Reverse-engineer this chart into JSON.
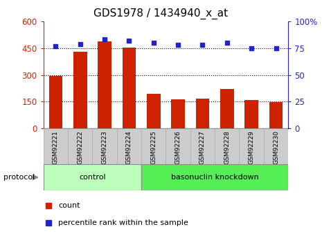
{
  "title": "GDS1978 / 1434940_x_at",
  "samples": [
    "GSM92221",
    "GSM92222",
    "GSM92223",
    "GSM92224",
    "GSM92225",
    "GSM92226",
    "GSM92227",
    "GSM92228",
    "GSM92229",
    "GSM92230"
  ],
  "counts": [
    295,
    430,
    490,
    455,
    195,
    165,
    168,
    220,
    158,
    148
  ],
  "percentile_ranks": [
    77,
    79,
    83,
    82,
    80,
    78,
    78,
    80,
    75,
    75
  ],
  "groups": [
    {
      "label": "control",
      "start": 0,
      "end": 4,
      "color": "#bbffbb"
    },
    {
      "label": "basonuclin knockdown",
      "start": 4,
      "end": 10,
      "color": "#55ee55"
    }
  ],
  "bar_color": "#cc2200",
  "dot_color": "#2222cc",
  "left_ylim": [
    0,
    600
  ],
  "left_yticks": [
    0,
    150,
    300,
    450,
    600
  ],
  "right_ylim": [
    0,
    100
  ],
  "right_yticks": [
    0,
    25,
    50,
    75,
    100
  ],
  "right_ytick_labels": [
    "0",
    "25",
    "50",
    "75",
    "100%"
  ],
  "grid_values": [
    150,
    300,
    450
  ],
  "legend_items": [
    {
      "label": "count",
      "color": "#cc2200"
    },
    {
      "label": "percentile rank within the sample",
      "color": "#2222cc"
    }
  ],
  "bar_width": 0.55
}
